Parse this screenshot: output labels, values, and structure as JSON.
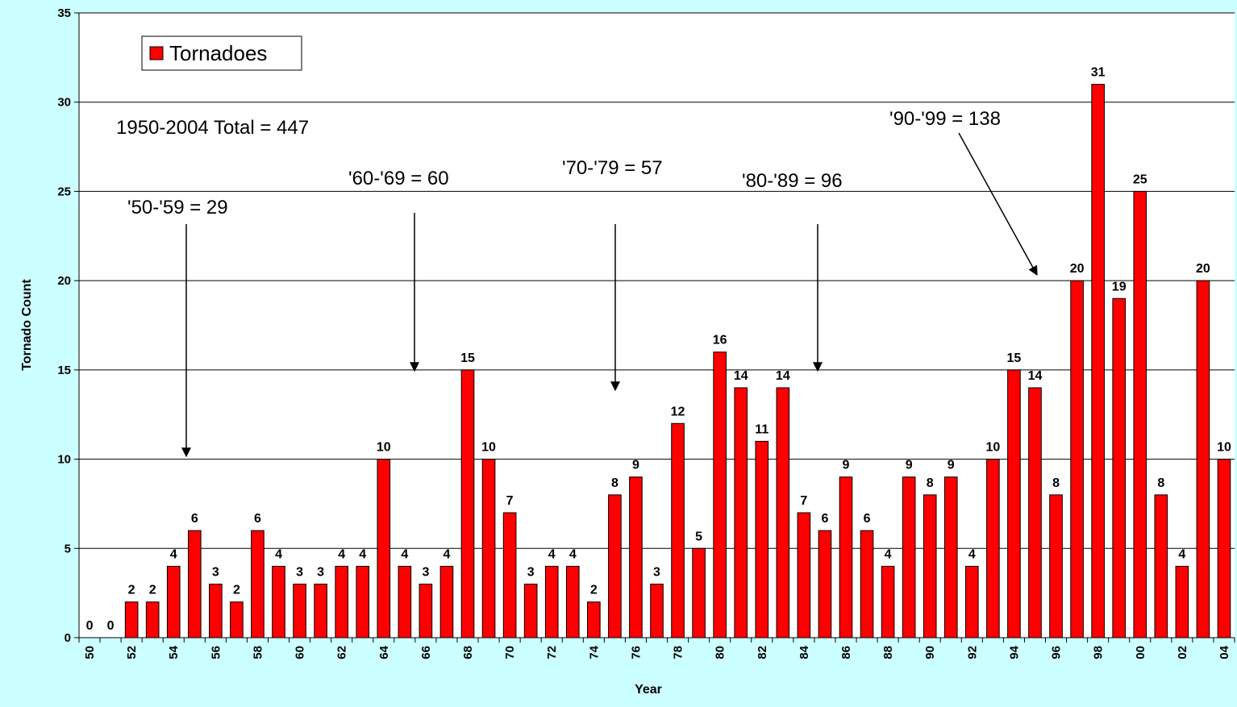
{
  "chart_data": {
    "type": "bar",
    "xlabel": "Year",
    "ylabel": "Tornado Count",
    "ylim": [
      0,
      35
    ],
    "yticks": [
      "0",
      "5",
      "10",
      "15",
      "20",
      "25",
      "30",
      "35"
    ],
    "grid": "horizontal",
    "legend_position": "top-left",
    "categories": [
      "50",
      "51",
      "52",
      "53",
      "54",
      "55",
      "56",
      "57",
      "58",
      "59",
      "60",
      "61",
      "62",
      "63",
      "64",
      "65",
      "66",
      "67",
      "68",
      "69",
      "70",
      "71",
      "72",
      "73",
      "74",
      "75",
      "76",
      "77",
      "78",
      "79",
      "80",
      "81",
      "82",
      "83",
      "84",
      "85",
      "86",
      "87",
      "88",
      "89",
      "90",
      "91",
      "92",
      "93",
      "94",
      "95",
      "96",
      "97",
      "98",
      "99",
      "00",
      "01",
      "02",
      "03",
      "04"
    ],
    "shown_tick_labels": [
      "50",
      "52",
      "54",
      "56",
      "58",
      "60",
      "62",
      "64",
      "66",
      "68",
      "70",
      "72",
      "74",
      "76",
      "78",
      "80",
      "82",
      "84",
      "86",
      "88",
      "90",
      "92",
      "94",
      "96",
      "98",
      "00",
      "02",
      "04"
    ],
    "series": [
      {
        "name": "Tornadoes",
        "color": "#ff0000",
        "values": [
          0,
          0,
          2,
          2,
          4,
          6,
          3,
          2,
          6,
          4,
          3,
          3,
          4,
          4,
          10,
          4,
          3,
          4,
          15,
          10,
          7,
          3,
          4,
          4,
          2,
          8,
          9,
          3,
          12,
          5,
          16,
          14,
          11,
          14,
          7,
          6,
          9,
          6,
          4,
          9,
          8,
          9,
          4,
          10,
          15,
          14,
          8,
          20,
          31,
          19,
          25,
          8,
          4,
          20,
          10
        ]
      }
    ],
    "annotations": [
      {
        "text": "1950-2004 Total = 447"
      },
      {
        "text": "'50-'59 = 29",
        "arrow_to": {
          "x": "55",
          "y": 10
        }
      },
      {
        "text": "'60-'69 = 60",
        "arrow_to": {
          "x": "66",
          "y": 15
        }
      },
      {
        "text": "'70-'79 = 57",
        "arrow_to": {
          "x": "76",
          "y": 14
        }
      },
      {
        "text": "'80-'89 = 96",
        "arrow_to": {
          "x": "86",
          "y": 15
        }
      },
      {
        "text": "'90-'99 = 138",
        "arrow_to": {
          "x": "96",
          "y": 20
        }
      }
    ]
  }
}
